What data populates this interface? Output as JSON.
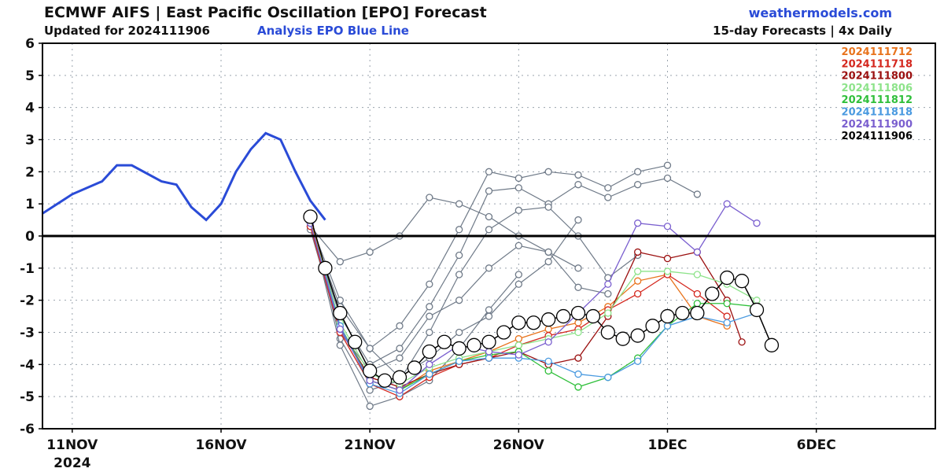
{
  "header": {
    "title": "ECMWF AIFS | East Pacific Oscillation [EPO] Forecast",
    "updated": "Updated for 2024111906",
    "analysis_note": "Analysis EPO Blue Line",
    "site": "weathermodels.com",
    "frequency": "15-day Forecasts | 4x Daily"
  },
  "chart_data": {
    "type": "line",
    "title": "ECMWF AIFS | East Pacific Oscillation [EPO] Forecast",
    "ylim": [
      -6,
      6
    ],
    "yticks": [
      6,
      5,
      4,
      3,
      2,
      1,
      0,
      -1,
      -2,
      -3,
      -4,
      -5,
      -6
    ],
    "ytick_labels": [
      "6",
      "5",
      "4",
      "3",
      "2",
      "1",
      "0",
      "-1",
      "-2",
      "-3",
      "-4",
      "-5",
      "-6"
    ],
    "xlim": [
      "2024-11-10",
      "2024-12-10"
    ],
    "xticks": [
      {
        "date": "2024-11-11",
        "label": "11NOV",
        "sublabel": "2024"
      },
      {
        "date": "2024-11-16",
        "label": "16NOV",
        "sublabel": ""
      },
      {
        "date": "2024-11-21",
        "label": "21NOV",
        "sublabel": ""
      },
      {
        "date": "2024-11-26",
        "label": "26NOV",
        "sublabel": ""
      },
      {
        "date": "2024-12-01",
        "label": "1DEC",
        "sublabel": ""
      },
      {
        "date": "2024-12-06",
        "label": "6DEC",
        "sublabel": ""
      }
    ],
    "grid": true,
    "legend_position": "top-right",
    "colors": {
      "analysis": "#2a4bd7",
      "ensemble": "#6f7a88",
      "zero_line": "#000000"
    },
    "analysis": {
      "name": "Analysis EPO",
      "x": [
        "2024-11-10",
        "2024-11-11",
        "2024-11-12",
        "2024-11-12T12",
        "2024-11-13",
        "2024-11-14",
        "2024-11-14T12",
        "2024-11-15",
        "2024-11-15T12",
        "2024-11-16",
        "2024-11-16T12",
        "2024-11-17",
        "2024-11-17T12",
        "2024-11-18",
        "2024-11-18T12",
        "2024-11-19",
        "2024-11-19T12"
      ],
      "y": [
        0.7,
        1.3,
        1.7,
        2.2,
        2.2,
        1.7,
        1.6,
        0.9,
        0.5,
        1.0,
        2.0,
        2.7,
        3.2,
        3.0,
        2.0,
        1.1,
        0.5
      ]
    },
    "series": [
      {
        "name": "2024111712",
        "color": "#e8731c",
        "x": [
          "2024-11-19",
          "2024-11-20",
          "2024-11-21",
          "2024-11-22",
          "2024-11-23",
          "2024-11-24",
          "2024-11-25",
          "2024-11-26",
          "2024-11-27",
          "2024-11-28",
          "2024-11-29",
          "2024-11-30",
          "2024-12-01",
          "2024-12-02",
          "2024-12-03"
        ],
        "y": [
          0.5,
          -2.8,
          -4.5,
          -4.8,
          -4.2,
          -3.9,
          -3.6,
          -3.2,
          -2.9,
          -2.7,
          -2.2,
          -1.4,
          -1.2,
          -2.5,
          -2.8
        ]
      },
      {
        "name": "2024111718",
        "color": "#d4271e",
        "x": [
          "2024-11-19",
          "2024-11-20",
          "2024-11-21",
          "2024-11-22",
          "2024-11-23",
          "2024-11-24",
          "2024-11-25",
          "2024-11-26",
          "2024-11-27",
          "2024-11-28",
          "2024-11-29",
          "2024-11-30",
          "2024-12-01",
          "2024-12-02",
          "2024-12-03"
        ],
        "y": [
          0.3,
          -3.0,
          -4.6,
          -5.0,
          -4.4,
          -4.0,
          -3.8,
          -3.4,
          -3.1,
          -2.9,
          -2.3,
          -1.8,
          -1.2,
          -1.8,
          -2.5
        ]
      },
      {
        "name": "2024111800",
        "color": "#9b1010",
        "x": [
          "2024-11-19",
          "2024-11-20",
          "2024-11-21",
          "2024-11-22",
          "2024-11-23",
          "2024-11-24",
          "2024-11-25",
          "2024-11-26",
          "2024-11-27",
          "2024-11-28",
          "2024-11-29",
          "2024-11-30",
          "2024-12-01",
          "2024-12-02",
          "2024-12-03",
          "2024-12-03T12"
        ],
        "y": [
          0.4,
          -2.9,
          -4.4,
          -4.7,
          -4.3,
          -4.0,
          -3.8,
          -3.6,
          -4.0,
          -3.8,
          -2.5,
          -0.5,
          -0.7,
          -0.5,
          -2.0,
          -3.3
        ]
      },
      {
        "name": "2024111806",
        "color": "#8de38a",
        "x": [
          "2024-11-19",
          "2024-11-20",
          "2024-11-21",
          "2024-11-22",
          "2024-11-23",
          "2024-11-24",
          "2024-11-25",
          "2024-11-26",
          "2024-11-27",
          "2024-11-28",
          "2024-11-29",
          "2024-11-30",
          "2024-12-01",
          "2024-12-02",
          "2024-12-03",
          "2024-12-04"
        ],
        "y": [
          0.4,
          -2.7,
          -4.3,
          -4.6,
          -4.1,
          -3.8,
          -3.6,
          -3.4,
          -3.2,
          -3.0,
          -2.4,
          -1.1,
          -1.1,
          -1.2,
          -1.5,
          -2.0
        ]
      },
      {
        "name": "2024111812",
        "color": "#2fbf3a",
        "x": [
          "2024-11-19",
          "2024-11-20",
          "2024-11-21",
          "2024-11-22",
          "2024-11-23",
          "2024-11-24",
          "2024-11-25",
          "2024-11-26",
          "2024-11-27",
          "2024-11-28",
          "2024-11-29",
          "2024-11-30",
          "2024-12-01",
          "2024-12-02",
          "2024-12-03",
          "2024-12-04"
        ],
        "y": [
          0.4,
          -2.8,
          -4.5,
          -4.8,
          -4.3,
          -3.9,
          -3.7,
          -3.6,
          -4.2,
          -4.7,
          -4.4,
          -3.8,
          -2.8,
          -2.1,
          -2.1,
          -2.2
        ]
      },
      {
        "name": "2024111818",
        "color": "#4a9ae0",
        "x": [
          "2024-11-19",
          "2024-11-20",
          "2024-11-21",
          "2024-11-22",
          "2024-11-23",
          "2024-11-24",
          "2024-11-25",
          "2024-11-26",
          "2024-11-27",
          "2024-11-28",
          "2024-11-29",
          "2024-11-30",
          "2024-12-01",
          "2024-12-02",
          "2024-12-03",
          "2024-12-04"
        ],
        "y": [
          0.4,
          -2.8,
          -4.6,
          -4.9,
          -4.3,
          -3.9,
          -3.8,
          -3.8,
          -3.9,
          -4.3,
          -4.4,
          -3.9,
          -2.8,
          -2.5,
          -2.7,
          -2.4
        ]
      },
      {
        "name": "2024111900",
        "color": "#7a5fcf",
        "x": [
          "2024-11-19",
          "2024-11-20",
          "2024-11-21",
          "2024-11-22",
          "2024-11-23",
          "2024-11-24",
          "2024-11-25",
          "2024-11-26",
          "2024-11-27",
          "2024-11-28",
          "2024-11-29",
          "2024-11-30",
          "2024-12-01",
          "2024-12-02",
          "2024-12-03",
          "2024-12-04"
        ],
        "y": [
          0.4,
          -2.9,
          -4.5,
          -4.8,
          -4.0,
          -3.4,
          -3.6,
          -3.7,
          -3.3,
          -2.4,
          -1.5,
          0.4,
          0.3,
          -0.5,
          1.0,
          0.4
        ]
      },
      {
        "name": "2024111906",
        "color": "#000000",
        "x": [
          "2024-11-19",
          "2024-11-19T12",
          "2024-11-20",
          "2024-11-20T12",
          "2024-11-21",
          "2024-11-21T12",
          "2024-11-22",
          "2024-11-22T12",
          "2024-11-23",
          "2024-11-23T12",
          "2024-11-24",
          "2024-11-24T12",
          "2024-11-25",
          "2024-11-25T12",
          "2024-11-26",
          "2024-11-26T12",
          "2024-11-27",
          "2024-11-27T12",
          "2024-11-28",
          "2024-11-28T12",
          "2024-11-29",
          "2024-11-29T12",
          "2024-11-30",
          "2024-11-30T12",
          "2024-12-01",
          "2024-12-01T12",
          "2024-12-02",
          "2024-12-02T12",
          "2024-12-03",
          "2024-12-03T12",
          "2024-12-04",
          "2024-12-04T12"
        ],
        "y": [
          0.6,
          -1.0,
          -2.4,
          -3.3,
          -4.2,
          -4.5,
          -4.4,
          -4.1,
          -3.6,
          -3.3,
          -3.5,
          -3.4,
          -3.3,
          -3.0,
          -2.7,
          -2.7,
          -2.6,
          -2.5,
          -2.4,
          -2.5,
          -3.0,
          -3.2,
          -3.1,
          -2.8,
          -2.5,
          -2.4,
          -2.4,
          -1.8,
          -1.3,
          -1.4,
          -2.3,
          -3.4
        ]
      }
    ],
    "ensemble_members": [
      {
        "x": [
          "2024-11-19",
          "2024-11-20",
          "2024-11-21",
          "2024-11-22",
          "2024-11-23",
          "2024-11-24",
          "2024-11-25",
          "2024-11-26",
          "2024-11-27",
          "2024-11-28"
        ],
        "y": [
          0.3,
          -0.8,
          -0.5,
          0.0,
          1.2,
          1.0,
          0.6,
          0.0,
          -0.5,
          -1.0
        ]
      },
      {
        "x": [
          "2024-11-19",
          "2024-11-20",
          "2024-11-21",
          "2024-11-22",
          "2024-11-23",
          "2024-11-24",
          "2024-11-25",
          "2024-11-26",
          "2024-11-27",
          "2024-11-28",
          "2024-11-29",
          "2024-11-30",
          "2024-12-01"
        ],
        "y": [
          0.4,
          -2.0,
          -3.5,
          -2.8,
          -1.5,
          0.2,
          2.0,
          1.8,
          2.0,
          1.9,
          1.5,
          2.0,
          2.2
        ]
      },
      {
        "x": [
          "2024-11-19",
          "2024-11-20",
          "2024-11-21",
          "2024-11-22",
          "2024-11-23",
          "2024-11-24",
          "2024-11-25",
          "2024-11-26",
          "2024-11-27",
          "2024-11-28",
          "2024-11-29",
          "2024-11-30",
          "2024-12-01",
          "2024-12-02"
        ],
        "y": [
          0.3,
          -2.5,
          -4.0,
          -3.5,
          -2.2,
          -0.6,
          1.4,
          1.5,
          1.0,
          1.6,
          1.2,
          1.6,
          1.8,
          1.3
        ]
      },
      {
        "x": [
          "2024-11-19",
          "2024-11-20",
          "2024-11-21",
          "2024-11-22",
          "2024-11-23",
          "2024-11-24",
          "2024-11-25",
          "2024-11-26",
          "2024-11-27",
          "2024-11-28",
          "2024-11-29",
          "2024-11-30"
        ],
        "y": [
          0.5,
          -3.2,
          -4.8,
          -4.5,
          -3.0,
          -1.2,
          0.2,
          0.8,
          0.9,
          0.0,
          -1.3,
          -0.6
        ]
      },
      {
        "x": [
          "2024-11-19",
          "2024-11-20",
          "2024-11-21",
          "2024-11-22",
          "2024-11-23",
          "2024-11-24",
          "2024-11-25",
          "2024-11-26",
          "2024-11-27",
          "2024-11-28",
          "2024-11-29"
        ],
        "y": [
          0.2,
          -3.0,
          -4.2,
          -3.8,
          -2.5,
          -2.0,
          -1.0,
          -0.3,
          -0.5,
          -1.6,
          -1.8
        ]
      },
      {
        "x": [
          "2024-11-19",
          "2024-11-20",
          "2024-11-21",
          "2024-11-22",
          "2024-11-23",
          "2024-11-24",
          "2024-11-25",
          "2024-11-26",
          "2024-11-27",
          "2024-11-28"
        ],
        "y": [
          0.3,
          -2.2,
          -3.5,
          -4.4,
          -3.8,
          -3.0,
          -2.5,
          -1.5,
          -0.8,
          0.5
        ]
      },
      {
        "x": [
          "2024-11-19",
          "2024-11-20",
          "2024-11-21",
          "2024-11-22",
          "2024-11-23",
          "2024-11-24",
          "2024-11-25",
          "2024-11-26"
        ],
        "y": [
          0.4,
          -3.4,
          -5.3,
          -5.0,
          -4.5,
          -3.5,
          -2.3,
          -1.2
        ]
      }
    ],
    "legend": [
      {
        "label": "2024111712",
        "color": "#e8731c"
      },
      {
        "label": "2024111718",
        "color": "#d4271e"
      },
      {
        "label": "2024111800",
        "color": "#9b1010"
      },
      {
        "label": "2024111806",
        "color": "#8de38a"
      },
      {
        "label": "2024111812",
        "color": "#2fbf3a"
      },
      {
        "label": "2024111818",
        "color": "#4a9ae0"
      },
      {
        "label": "2024111900",
        "color": "#7a5fcf"
      },
      {
        "label": "2024111906",
        "color": "#000000"
      }
    ]
  }
}
